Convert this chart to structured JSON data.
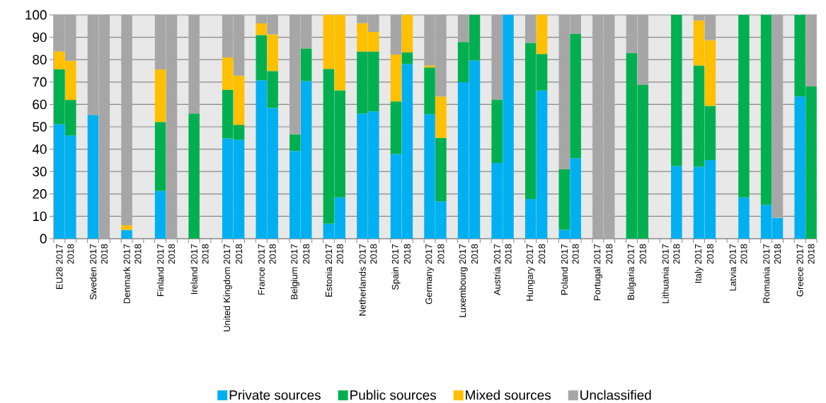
{
  "chart_data": {
    "type": "bar",
    "stacked": true,
    "categories": [
      "EU28 2017",
      "2018",
      null,
      "Sweden 2017",
      "2018",
      null,
      "Denmark 2017",
      "2018",
      null,
      "Finland 2017",
      "2018",
      null,
      "Ireland 2017",
      "2018",
      null,
      "United Kingdom 2017",
      "2018",
      null,
      "France 2017",
      "2018",
      null,
      "Belgium 2017",
      "2018",
      null,
      "Estonia 2017",
      "2018",
      null,
      "Netherlands 2017",
      "2018",
      null,
      "Spain 2017",
      "2018",
      null,
      "Germany 2017",
      "2018",
      null,
      "Luxembourg 2017",
      "2018",
      null,
      "Austria 2017",
      "2018",
      null,
      "Hungary 2017",
      "2018",
      null,
      "Poland 2017",
      "2018",
      null,
      "Portugal 2017",
      "2018",
      null,
      "Bulgaria 2017",
      "2018",
      null,
      "Lithuania 2017",
      "2018",
      null,
      "Italy 2017",
      "2018",
      null,
      "Latvia 2017",
      "2018",
      null,
      "Romania 2017",
      "2018",
      null,
      "Greece 2017",
      "2018"
    ],
    "series": [
      {
        "name": "Private sources",
        "color": "#00b0f0",
        "values": [
          51.1,
          46.1,
          null,
          55.3,
          null,
          null,
          3.9,
          null,
          null,
          21.4,
          null,
          null,
          null,
          null,
          null,
          44.8,
          44.2,
          null,
          70.8,
          58.4,
          null,
          39.2,
          70.4,
          null,
          6.7,
          18.4,
          null,
          55.9,
          56.9,
          null,
          37.8,
          78.1,
          null,
          55.6,
          16.7,
          null,
          69.9,
          79.7,
          null,
          33.9,
          100,
          null,
          17.7,
          66.2,
          null,
          4.0,
          36.0,
          null,
          null,
          null,
          null,
          null,
          null,
          null,
          null,
          32.4,
          null,
          32.1,
          35.1,
          null,
          null,
          18.4,
          null,
          15.1,
          9.3,
          null,
          63.5,
          null
        ]
      },
      {
        "name": "Public sources",
        "color": "#00b050",
        "values": [
          24.6,
          15.9,
          null,
          null,
          null,
          null,
          null,
          null,
          null,
          30.7,
          null,
          null,
          55.9,
          null,
          null,
          21.7,
          6.7,
          null,
          20.2,
          16.5,
          null,
          7.4,
          14.6,
          null,
          69.2,
          47.9,
          null,
          27.7,
          26.7,
          null,
          23.5,
          5.1,
          null,
          20.9,
          28.3,
          null,
          18.0,
          20.3,
          null,
          28.3,
          null,
          null,
          69.8,
          16.3,
          null,
          27.1,
          55.5,
          null,
          null,
          null,
          null,
          83.0,
          68.7,
          null,
          null,
          67.6,
          null,
          45.3,
          24.2,
          null,
          null,
          81.6,
          null,
          84.9,
          null,
          null,
          36.5,
          68.0
        ]
      },
      {
        "name": "Mixed sources",
        "color": "#ffc000",
        "values": [
          8.0,
          17.5,
          null,
          null,
          null,
          null,
          2.1,
          null,
          null,
          23.5,
          null,
          null,
          null,
          null,
          null,
          14.5,
          22.0,
          null,
          5.2,
          16.4,
          null,
          null,
          null,
          null,
          24.1,
          33.7,
          null,
          12.7,
          8.8,
          null,
          21.0,
          16.8,
          null,
          0.9,
          18.5,
          null,
          null,
          null,
          null,
          null,
          null,
          null,
          null,
          17.5,
          null,
          null,
          null,
          null,
          null,
          null,
          null,
          null,
          null,
          null,
          null,
          null,
          null,
          20.1,
          29.4,
          null,
          null,
          null,
          null,
          null,
          null,
          null,
          null,
          null
        ]
      },
      {
        "name": "Unclassified",
        "color": "#a6a6a6",
        "values": [
          16.3,
          20.5,
          null,
          44.7,
          100,
          null,
          94.0,
          null,
          null,
          24.4,
          100,
          null,
          44.1,
          null,
          null,
          19.0,
          27.1,
          null,
          3.8,
          8.7,
          null,
          53.4,
          15.0,
          null,
          null,
          null,
          null,
          3.7,
          7.6,
          null,
          17.7,
          null,
          null,
          22.6,
          36.5,
          null,
          12.1,
          null,
          null,
          37.8,
          null,
          null,
          12.5,
          null,
          null,
          68.9,
          8.5,
          null,
          100,
          100,
          null,
          17.0,
          31.3,
          null,
          null,
          null,
          null,
          2.5,
          11.3,
          null,
          null,
          null,
          null,
          null,
          90.7,
          null,
          null,
          32.0
        ]
      }
    ],
    "ylim": [
      0,
      100
    ],
    "yticks": [
      0,
      10,
      20,
      30,
      40,
      50,
      60,
      70,
      80,
      90,
      100
    ],
    "grid": "y",
    "legend": "bottom"
  }
}
